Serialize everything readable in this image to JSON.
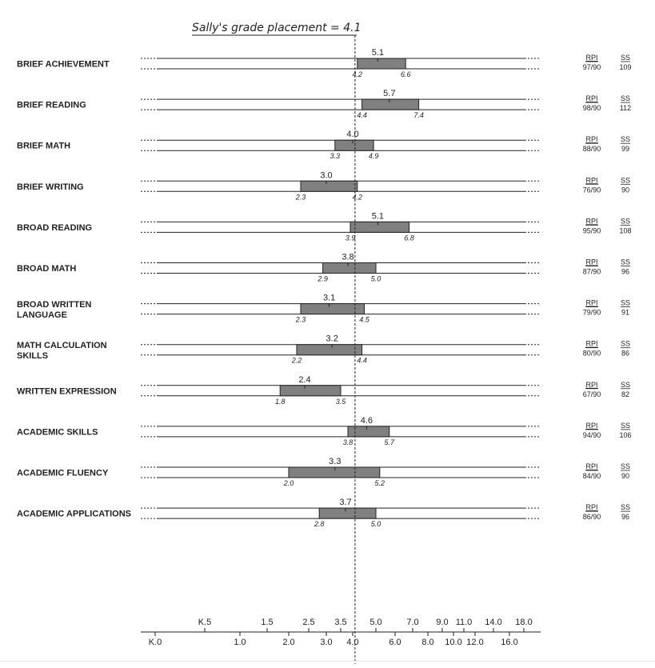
{
  "chart_data": {
    "type": "range",
    "title": "Sally's grade placement = 4.1",
    "reference_line": 4.1,
    "rpi_header": "RPI",
    "ss_header": "SS",
    "rows": [
      {
        "label": [
          "BRIEF ACHIEVEMENT"
        ],
        "value": "5.1",
        "low": "4.2",
        "high": "6.6",
        "rpi": "97/90",
        "ss": "109"
      },
      {
        "label": [
          "BRIEF READING"
        ],
        "value": "5.7",
        "low": "4.4",
        "high": "7.4",
        "rpi": "98/90",
        "ss": "112"
      },
      {
        "label": [
          "BRIEF MATH"
        ],
        "value": "4.0",
        "low": "3.3",
        "high": "4.9",
        "rpi": "88/90",
        "ss": "99"
      },
      {
        "label": [
          "BRIEF WRITING"
        ],
        "value": "3.0",
        "low": "2.3",
        "high": "4.2",
        "rpi": "76/90",
        "ss": "90"
      },
      {
        "label": [
          "BROAD READING"
        ],
        "value": "5.1",
        "low": "3.9",
        "high": "6.8",
        "rpi": "95/90",
        "ss": "108"
      },
      {
        "label": [
          "BROAD MATH"
        ],
        "value": "3.8",
        "low": "2.9",
        "high": "5.0",
        "rpi": "87/90",
        "ss": "96"
      },
      {
        "label": [
          "BROAD WRITTEN",
          "LANGUAGE"
        ],
        "value": "3.1",
        "low": "2.3",
        "high": "4.5",
        "rpi": "79/90",
        "ss": "91"
      },
      {
        "label": [
          "MATH CALCULATION",
          "SKILLS"
        ],
        "value": "3.2",
        "low": "2.2",
        "high": "4.4",
        "rpi": "80/90",
        "ss": "86"
      },
      {
        "label": [
          "WRITTEN EXPRESSION"
        ],
        "value": "2.4",
        "low": "1.8",
        "high": "3.5",
        "rpi": "67/90",
        "ss": "82"
      },
      {
        "label": [
          "ACADEMIC SKILLS"
        ],
        "value": "4.6",
        "low": "3.8",
        "high": "5.7",
        "rpi": "94/90",
        "ss": "106"
      },
      {
        "label": [
          "ACADEMIC FLUENCY"
        ],
        "value": "3.3",
        "low": "2.0",
        "high": "5.2",
        "rpi": "84/90",
        "ss": "90"
      },
      {
        "label": [
          "ACADEMIC APPLICATIONS"
        ],
        "value": "3.7",
        "low": "2.8",
        "high": "5.0",
        "rpi": "86/90",
        "ss": "96"
      }
    ],
    "axis_upper_ticks": [
      "K.5",
      "1.5",
      "2.5",
      "3.5",
      "5.0",
      "7.0",
      "9.0",
      "11.0",
      "14.0",
      "18.0"
    ],
    "axis_lower_ticks": [
      "K.0",
      "1.0",
      "2.0",
      "3.0",
      "4.0",
      "6.0",
      "8.0",
      "10.0",
      "12.0",
      "16.0"
    ],
    "grid": false
  }
}
